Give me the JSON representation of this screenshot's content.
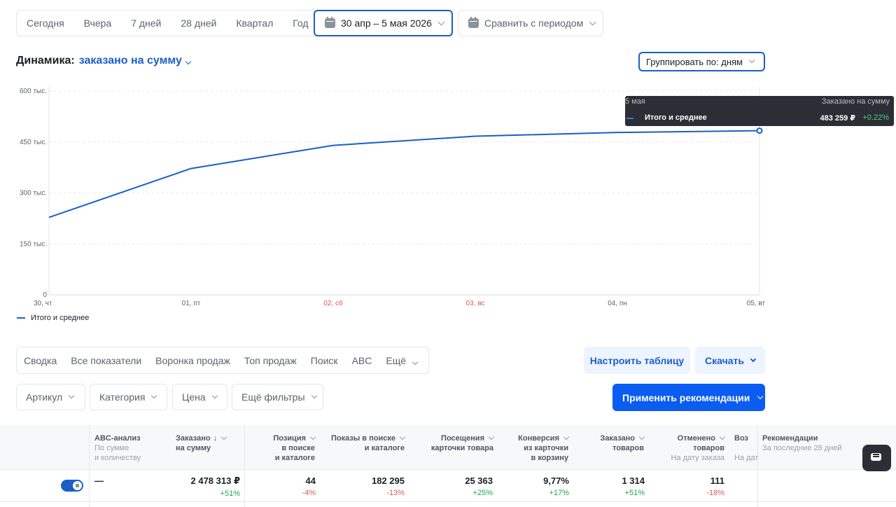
{
  "periods": [
    "Сегодня",
    "Вчера",
    "7 дней",
    "28 дней",
    "Квартал",
    "Год"
  ],
  "date_range": "30 апр – 5 мая 2026",
  "compare_label": "Сравнить с периодом",
  "dynamics": {
    "label": "Динамика:",
    "metric": "заказано на сумму"
  },
  "group_by": "Группировать по: дням",
  "chart_data": {
    "type": "line",
    "x": [
      "30, чт",
      "01, пт",
      "02, сб",
      "03, вс",
      "04, пн",
      "05, вт"
    ],
    "weekend_color": "#e05a4a",
    "weekend_indices": [
      2,
      3
    ],
    "y_ticks": [
      "0",
      "150 тыс.",
      "300 тыс.",
      "450 тыс.",
      "600 тыс."
    ],
    "ylim": [
      0,
      600000
    ],
    "series": [
      {
        "name": "Итого и среднее",
        "color": "#1a5fc9",
        "values": [
          228000,
          372000,
          440000,
          467000,
          478000,
          483259
        ]
      }
    ],
    "legend": "Итого и среднее",
    "grid": true
  },
  "tooltip": {
    "date": "5 мая",
    "metric": "Заказано на сумму",
    "series": "Итого и среднее",
    "value": "483 259 ₽",
    "delta": "+0.22%"
  },
  "tabs": [
    "Сводка",
    "Все показатели",
    "Воронка продаж",
    "Топ продаж",
    "Поиск",
    "ABC",
    "Ещё"
  ],
  "configure_table": "Настроить таблицу",
  "download": "Скачать",
  "filters": [
    "Артикул",
    "Категория",
    "Цена",
    "Ещё фильтры"
  ],
  "apply_recommendations": "Применить рекомендации",
  "table": {
    "abc": {
      "title": "ABC-анализ",
      "sub1": "По сумме",
      "sub2": "и количеству"
    },
    "ordered_sum": {
      "l1": "Заказано",
      "l2": "на сумму"
    },
    "position": {
      "l1": "Позиция",
      "l2": "в поиске",
      "l3": "и каталоге"
    },
    "impressions": {
      "l1": "Показы в поиске",
      "l2": "и каталоге"
    },
    "visits": {
      "l1": "Посещения",
      "l2": "карточки товара"
    },
    "conversion": {
      "l1": "Конверсия",
      "l2": "из карточки",
      "l3": "в корзину"
    },
    "ordered_count": {
      "l1": "Заказано",
      "l2": "товаров"
    },
    "canceled": {
      "l1": "Отменено",
      "l2": "товаров",
      "sub": "На дату заказа"
    },
    "returns": {
      "l1": "Воз",
      "sub": "На дат"
    },
    "recommendations": {
      "title": "Рекомендации",
      "sub": "За последние 28 дней"
    },
    "row": {
      "abc": "—",
      "ordered_sum": "2 478 313 ₽",
      "ordered_sum_d": "+51%",
      "position": "44",
      "position_d": "-4%",
      "impressions": "182 295",
      "impressions_d": "-13%",
      "visits": "25 363",
      "visits_d": "+25%",
      "conversion": "9,77%",
      "conversion_d": "+17%",
      "ordered_count": "1 314",
      "ordered_count_d": "+51%",
      "canceled": "111",
      "canceled_d": "-18%"
    }
  }
}
